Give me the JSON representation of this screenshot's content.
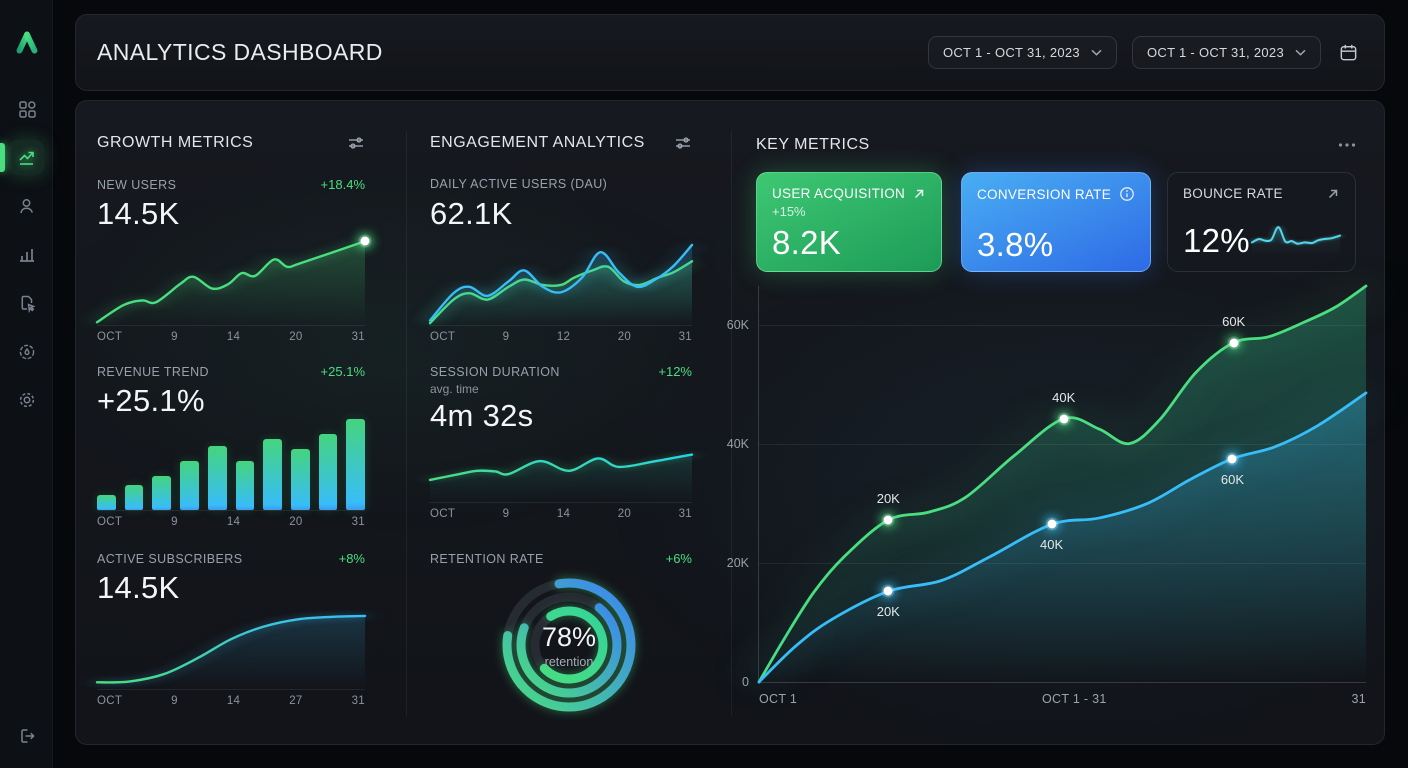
{
  "header": {
    "title": "ANALYTICS DASHBOARD",
    "range1": "OCT 1 - OCT 31, 2023",
    "range2": "OCT 1 - OCT 31, 2023"
  },
  "sidebar": {
    "icons": [
      "logo",
      "grid-dashboard",
      "trend-up (active)",
      "user",
      "bar-chart",
      "file-report",
      "badge-drop",
      "gear",
      "logout"
    ]
  },
  "growth": {
    "title": "GROWTH METRICS",
    "new_users": {
      "label": "NEW USERS",
      "value": "14.5K",
      "delta": "+18.4%"
    },
    "revenue": {
      "label": "REVENUE TREND",
      "value": "+25.1%",
      "delta": "+25.1%"
    },
    "subscribers": {
      "label": "ACTIVE SUBSCRIBERS",
      "value": "14.5K",
      "delta": "+8%"
    }
  },
  "engagement": {
    "title": "ENGAGEMENT ANALYTICS",
    "dau": {
      "label": "DAILY ACTIVE USERS (DAU)",
      "value": "62.1K"
    },
    "session": {
      "label": "SESSION DURATION",
      "sub": "avg. time",
      "value": "4m 32s",
      "delta": "+12%"
    },
    "retention": {
      "label": "RETENTION RATE",
      "delta": "+6%",
      "center_value": "78%",
      "center_label": "retention"
    }
  },
  "key": {
    "title": "KEY METRICS",
    "cards": [
      {
        "label": "USER ACQUISITION",
        "delta": "+15%",
        "value": "8.2K"
      },
      {
        "label": "CONVERSION RATE",
        "value": "3.8%"
      },
      {
        "label": "BOUNCE RATE",
        "value": "12%"
      }
    ]
  },
  "colors": {
    "accent_green": "#4ade80",
    "accent_blue": "#38bdf8",
    "panel_bg": "#14171d",
    "page_bg": "#06080b"
  },
  "chart_data": [
    {
      "id": "new-users",
      "type": "line",
      "title": "NEW USERS",
      "xticks": [
        "OCT",
        "9",
        "14",
        "20",
        "31"
      ],
      "series": [
        {
          "points": [
            [
              0,
              3
            ],
            [
              10,
              22
            ],
            [
              17,
              27
            ],
            [
              22,
              25
            ],
            [
              31,
              45
            ],
            [
              36,
              53
            ],
            [
              43,
              40
            ],
            [
              49,
              45
            ],
            [
              54,
              57
            ],
            [
              59,
              54
            ],
            [
              66,
              72
            ],
            [
              71,
              64
            ],
            [
              76,
              68
            ],
            [
              100,
              92
            ]
          ],
          "color": "#4ade80",
          "glow": "rgba(74,222,128,.6)",
          "fill": [
            "#4ade80",
            0.25
          ]
        }
      ],
      "endDot": {
        "x": 100,
        "y": 92,
        "glow": "rgba(74,222,128,.9)"
      }
    },
    {
      "id": "revenue",
      "type": "bar",
      "title": "REVENUE TREND",
      "xticks": [
        "OCT",
        "9",
        "14",
        "20",
        "31"
      ],
      "values": [
        17,
        27,
        37,
        54,
        70,
        54,
        78,
        67,
        84,
        100
      ]
    },
    {
      "id": "subscribers",
      "type": "line",
      "title": "ACTIVE SUBSCRIBERS",
      "xticks": [
        "OCT",
        "9",
        "14",
        "27",
        "31"
      ],
      "series": [
        {
          "points": [
            [
              0,
              8
            ],
            [
              12,
              9
            ],
            [
              25,
              18
            ],
            [
              38,
              38
            ],
            [
              50,
              60
            ],
            [
              62,
              75
            ],
            [
              75,
              84
            ],
            [
              88,
              87
            ],
            [
              100,
              88
            ]
          ],
          "color": [
            "#4ade80",
            "#38bdf8"
          ],
          "glow": "rgba(56,189,248,.5)",
          "fill": [
            "#38bdf8",
            0.18
          ]
        }
      ]
    },
    {
      "id": "dau",
      "type": "line",
      "title": "DAILY ACTIVE USERS (DAU)",
      "xticks": [
        "OCT",
        "9",
        "12",
        "20",
        "31"
      ],
      "series": [
        {
          "name": "dau-green",
          "points": [
            [
              0,
              2
            ],
            [
              9,
              28
            ],
            [
              15,
              35
            ],
            [
              22,
              28
            ],
            [
              30,
              42
            ],
            [
              36,
              50
            ],
            [
              43,
              44
            ],
            [
              50,
              44
            ],
            [
              55,
              52
            ],
            [
              62,
              60
            ],
            [
              68,
              64
            ],
            [
              74,
              48
            ],
            [
              80,
              44
            ],
            [
              87,
              52
            ],
            [
              93,
              58
            ],
            [
              100,
              70
            ]
          ],
          "color": "#4ade80",
          "glow": "rgba(74,222,128,.55)",
          "fill": [
            "#4ade80",
            0.22
          ]
        },
        {
          "name": "dau-blue",
          "points": [
            [
              0,
              5
            ],
            [
              9,
              35
            ],
            [
              15,
              42
            ],
            [
              22,
              32
            ],
            [
              30,
              48
            ],
            [
              36,
              60
            ],
            [
              43,
              42
            ],
            [
              50,
              36
            ],
            [
              58,
              52
            ],
            [
              65,
              80
            ],
            [
              72,
              58
            ],
            [
              79,
              42
            ],
            [
              86,
              50
            ],
            [
              93,
              65
            ],
            [
              100,
              88
            ]
          ],
          "color": "#38bdf8",
          "glow": "rgba(56,189,248,.6)",
          "fill": [
            "#38bdf8",
            0.2
          ]
        }
      ]
    },
    {
      "id": "session",
      "type": "line",
      "title": "SESSION DURATION",
      "xticks": [
        "OCT",
        "9",
        "14",
        "20",
        "31"
      ],
      "series": [
        {
          "points": [
            [
              0,
              34
            ],
            [
              10,
              42
            ],
            [
              18,
              48
            ],
            [
              25,
              47
            ],
            [
              30,
              43
            ],
            [
              42,
              63
            ],
            [
              53,
              48
            ],
            [
              64,
              67
            ],
            [
              72,
              54
            ],
            [
              85,
              62
            ],
            [
              100,
              73
            ]
          ],
          "color": [
            "#4ade80",
            "#22d3ee"
          ],
          "glow": "rgba(74,222,128,.45)",
          "fill": [
            "#2dd4bf",
            0.15
          ]
        }
      ]
    },
    {
      "id": "retention",
      "type": "donut",
      "title": "RETENTION RATE",
      "value_pct": 78,
      "track": "#262b32",
      "rings": [
        {
          "r": 62,
          "w": 9,
          "pct": 80,
          "gapCenter": 225,
          "colors": [
            "#4ade80",
            "#3b82f6"
          ]
        },
        {
          "r": 48,
          "w": 9,
          "pct": 70,
          "gapCenter": 255,
          "colors": [
            "#4ade80",
            "#3b82f6"
          ]
        },
        {
          "r": 34,
          "w": 9,
          "pct": 72,
          "gapCenter": 187,
          "colors": [
            "#4ade80",
            "#34d399"
          ]
        }
      ]
    },
    {
      "id": "main",
      "type": "line",
      "title": "KEY METRICS OVERVIEW",
      "ylim_k": [
        0,
        66.5
      ],
      "grid": [
        30.1,
        60.2,
        90.2
      ],
      "ylabels": [
        {
          "text": "60K",
          "y": 90.2
        },
        {
          "text": "40K",
          "y": 60.2
        },
        {
          "text": "20K",
          "y": 30.1
        },
        {
          "text": "0",
          "y": 0
        }
      ],
      "xticks": [
        "OCT 1",
        "OCT 1 - 31",
        "31"
      ],
      "series": [
        {
          "name": "green-series",
          "points": [
            [
              0,
              0
            ],
            [
              4,
              10.5
            ],
            [
              9,
              22.6
            ],
            [
              14,
              31.6
            ],
            [
              21.3,
              40.9
            ],
            [
              28,
              42.9
            ],
            [
              34,
              46.6
            ],
            [
              42,
              57.1
            ],
            [
              50.2,
              66.5
            ],
            [
              56,
              63.9
            ],
            [
              61,
              60.2
            ],
            [
              66,
              66.2
            ],
            [
              72,
              78.2
            ],
            [
              78.2,
              85.7
            ],
            [
              84,
              87.2
            ],
            [
              90,
              91
            ],
            [
              95,
              94.7
            ],
            [
              100,
              100
            ]
          ],
          "color": "#4ade80",
          "w": 2.8,
          "glow": "rgba(74,222,128,.6)",
          "fill": [
            "#34d399",
            0.3
          ]
        },
        {
          "name": "blue-series",
          "points": [
            [
              0,
              0
            ],
            [
              6,
              9
            ],
            [
              12,
              15.8
            ],
            [
              21.3,
              22.9
            ],
            [
              30,
              25.6
            ],
            [
              38,
              31.6
            ],
            [
              48.2,
              39.8
            ],
            [
              56,
              41.4
            ],
            [
              64,
              45.1
            ],
            [
              71,
              51.1
            ],
            [
              78,
              56.4
            ],
            [
              85,
              59.4
            ],
            [
              92,
              64.7
            ],
            [
              100,
              73
            ]
          ],
          "color": "#38bdf8",
          "w": 2.8,
          "glow": "rgba(56,189,248,.6)",
          "fill": [
            "#38bdf8",
            0.3
          ]
        }
      ],
      "markers": [
        {
          "x": 21.3,
          "y": 40.9,
          "label": "20K",
          "pos": "above",
          "glow": "rgba(74,222,128,.8)"
        },
        {
          "x": 50.2,
          "y": 66.5,
          "label": "40K",
          "pos": "above",
          "glow": "rgba(74,222,128,.8)"
        },
        {
          "x": 78.2,
          "y": 85.7,
          "label": "60K",
          "pos": "above",
          "glow": "rgba(74,222,128,.8)"
        },
        {
          "x": 21.3,
          "y": 22.9,
          "label": "20K",
          "pos": "below",
          "glow": "rgba(56,189,248,.8)"
        },
        {
          "x": 48.2,
          "y": 39.8,
          "label": "40K",
          "pos": "below",
          "glow": "rgba(56,189,248,.8)"
        },
        {
          "x": 78,
          "y": 56.4,
          "label": "60K",
          "pos": "below",
          "glow": "rgba(56,189,248,.8)"
        }
      ]
    },
    {
      "id": "bounce",
      "type": "line",
      "title": "BOUNCE RATE",
      "series": [
        {
          "points": [
            [
              0,
              40
            ],
            [
              8,
              50
            ],
            [
              15,
              45
            ],
            [
              22,
              48
            ],
            [
              30,
              85
            ],
            [
              38,
              42
            ],
            [
              45,
              44
            ],
            [
              52,
              36
            ],
            [
              60,
              40
            ],
            [
              68,
              38
            ],
            [
              75,
              46
            ],
            [
              82,
              50
            ],
            [
              90,
              52
            ],
            [
              100,
              60
            ]
          ],
          "color": "#53d7e8",
          "w": 2,
          "glow": "rgba(103,232,249,.5)",
          "fill": [
            "#53d7e8",
            0.12
          ]
        }
      ]
    }
  ]
}
